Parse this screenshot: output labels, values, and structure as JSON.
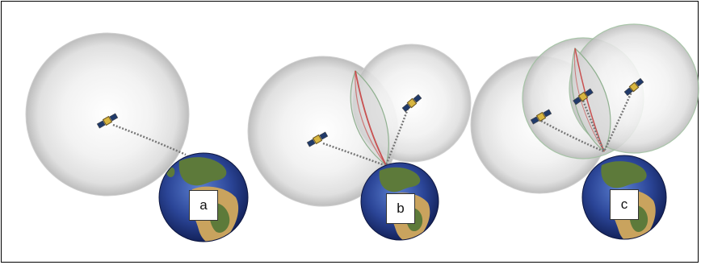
{
  "panels": [
    {
      "label": "a",
      "satellites": 1
    },
    {
      "label": "b",
      "satellites": 2
    },
    {
      "label": "c",
      "satellites": 3
    }
  ],
  "colors": {
    "sphere_edge": "#c9c9c9",
    "sphere_center": "#ffffff",
    "lens_red": "#c85050",
    "lens_green": "#8fb08f",
    "ocean": "#2a3f8f",
    "land": "#5d7a3a",
    "desert": "#c9a35e",
    "signal": "#777777"
  }
}
